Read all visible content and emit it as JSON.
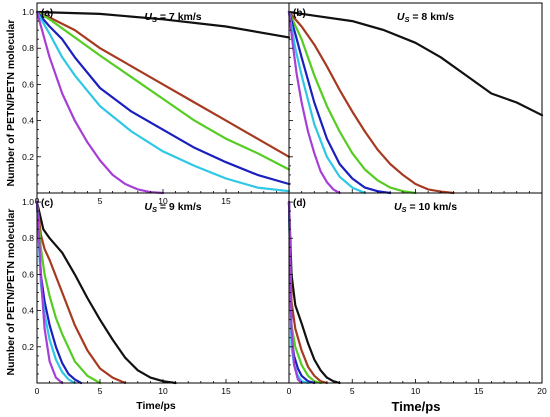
{
  "figure": {
    "ylabel_top": "Number of PETN/PETN molecular",
    "ylabel_bottom": "Number of PETN/PETN molecular",
    "xlabel_left": "Time/ps",
    "xlabel_right": "Time/ps"
  },
  "colors": {
    "black": "#111111",
    "brown": "#a63a20",
    "green": "#55cc22",
    "blue": "#1a1fbf",
    "cyan": "#2ec7e6",
    "purple": "#a63fd6"
  },
  "chart_data": [
    {
      "type": "line",
      "panel": "(a)",
      "title_prefix": "U",
      "title_sub": "S",
      "title_suffix": " = 7 km/s",
      "xlim": [
        0,
        20
      ],
      "ylim": [
        0,
        1.05
      ],
      "x_ticks": [
        "0",
        "5",
        "10",
        "15"
      ],
      "y_ticks": [
        "0.2",
        "0.4",
        "0.6",
        "0.8",
        "1.0"
      ],
      "series": [
        {
          "color": "black",
          "x": [
            0,
            5,
            10,
            15,
            20
          ],
          "y": [
            1.0,
            0.99,
            0.96,
            0.92,
            0.86
          ]
        },
        {
          "color": "brown",
          "x": [
            0,
            1,
            3,
            5,
            7.5,
            10,
            12.5,
            15,
            17.5,
            20
          ],
          "y": [
            1.0,
            0.97,
            0.9,
            0.8,
            0.7,
            0.6,
            0.5,
            0.4,
            0.3,
            0.2
          ]
        },
        {
          "color": "green",
          "x": [
            0,
            1,
            3,
            5,
            7.5,
            10,
            12.5,
            15,
            17.5,
            20
          ],
          "y": [
            1.0,
            0.96,
            0.86,
            0.76,
            0.64,
            0.52,
            0.4,
            0.3,
            0.22,
            0.13
          ]
        },
        {
          "color": "blue",
          "x": [
            0,
            1,
            2,
            3,
            5,
            7.5,
            10,
            12.5,
            15,
            17.5,
            20
          ],
          "y": [
            1.0,
            0.92,
            0.85,
            0.75,
            0.58,
            0.45,
            0.35,
            0.25,
            0.17,
            0.1,
            0.05
          ]
        },
        {
          "color": "cyan",
          "x": [
            0,
            1,
            2,
            3,
            5,
            7.5,
            10,
            12.5,
            15,
            17.5,
            20
          ],
          "y": [
            1.0,
            0.88,
            0.75,
            0.65,
            0.48,
            0.34,
            0.23,
            0.15,
            0.08,
            0.03,
            0.01
          ]
        },
        {
          "color": "purple",
          "x": [
            0,
            1,
            2,
            3,
            4,
            5,
            6,
            7,
            8,
            9,
            10
          ],
          "y": [
            1.0,
            0.75,
            0.55,
            0.4,
            0.28,
            0.18,
            0.1,
            0.05,
            0.02,
            0.005,
            0.0
          ]
        }
      ]
    },
    {
      "type": "line",
      "panel": "(b)",
      "title_prefix": "U",
      "title_sub": "S",
      "title_suffix": " = 8 km/s",
      "xlim": [
        0,
        20
      ],
      "ylim": [
        0,
        1.05
      ],
      "series": [
        {
          "color": "black",
          "x": [
            0,
            2,
            5,
            7.5,
            10,
            12,
            14,
            16,
            18,
            20
          ],
          "y": [
            1.0,
            0.98,
            0.95,
            0.9,
            0.83,
            0.75,
            0.65,
            0.55,
            0.5,
            0.43
          ]
        },
        {
          "color": "brown",
          "x": [
            0,
            1,
            2,
            3,
            4,
            5,
            6,
            7,
            8,
            9,
            10,
            11,
            12,
            13
          ],
          "y": [
            1.0,
            0.92,
            0.82,
            0.7,
            0.57,
            0.45,
            0.34,
            0.24,
            0.16,
            0.1,
            0.05,
            0.02,
            0.008,
            0.0
          ]
        },
        {
          "color": "green",
          "x": [
            0,
            1,
            2,
            3,
            4,
            5,
            6,
            7,
            8,
            9,
            10
          ],
          "y": [
            1.0,
            0.85,
            0.65,
            0.48,
            0.34,
            0.22,
            0.13,
            0.07,
            0.03,
            0.01,
            0.0
          ]
        },
        {
          "color": "blue",
          "x": [
            0,
            0.5,
            1,
            2,
            3,
            4,
            5,
            6,
            7,
            8
          ],
          "y": [
            1.0,
            0.88,
            0.75,
            0.5,
            0.3,
            0.16,
            0.08,
            0.03,
            0.01,
            0.0
          ]
        },
        {
          "color": "cyan",
          "x": [
            0,
            0.5,
            1,
            2,
            3,
            4,
            5,
            6
          ],
          "y": [
            1.0,
            0.8,
            0.65,
            0.38,
            0.2,
            0.09,
            0.03,
            0.0
          ]
        },
        {
          "color": "purple",
          "x": [
            0,
            0.3,
            0.6,
            1,
            1.5,
            2,
            2.5,
            3,
            3.5,
            4
          ],
          "y": [
            1.0,
            0.82,
            0.66,
            0.5,
            0.34,
            0.22,
            0.12,
            0.06,
            0.02,
            0.0
          ]
        }
      ]
    },
    {
      "type": "line",
      "panel": "(c)",
      "title_prefix": "U",
      "title_sub": "S",
      "title_suffix": " = 9 km/s",
      "xlim": [
        0,
        20
      ],
      "ylim": [
        0,
        1.05
      ],
      "x_ticks": [
        "0",
        "5",
        "10",
        "15"
      ],
      "y_ticks": [
        "0.2",
        "0.4",
        "0.6",
        "0.8",
        "1.0"
      ],
      "series": [
        {
          "color": "black",
          "x": [
            0,
            0.5,
            1,
            2,
            3,
            4,
            5,
            6,
            7,
            8,
            9,
            10,
            11
          ],
          "y": [
            1.0,
            0.85,
            0.8,
            0.72,
            0.6,
            0.47,
            0.35,
            0.24,
            0.14,
            0.07,
            0.03,
            0.01,
            0.0
          ]
        },
        {
          "color": "brown",
          "x": [
            0,
            0.3,
            0.6,
            1,
            2,
            3,
            4,
            5,
            6,
            7
          ],
          "y": [
            1.0,
            0.82,
            0.74,
            0.68,
            0.5,
            0.32,
            0.18,
            0.08,
            0.03,
            0.0
          ]
        },
        {
          "color": "green",
          "x": [
            0,
            0.3,
            0.6,
            1,
            1.5,
            2,
            3,
            4,
            5
          ],
          "y": [
            1.0,
            0.75,
            0.6,
            0.48,
            0.36,
            0.27,
            0.12,
            0.04,
            0.0
          ]
        },
        {
          "color": "blue",
          "x": [
            0,
            0.3,
            0.6,
            1,
            1.5,
            2,
            2.5,
            3,
            3.5
          ],
          "y": [
            1.0,
            0.6,
            0.45,
            0.32,
            0.2,
            0.11,
            0.05,
            0.02,
            0.0
          ]
        },
        {
          "color": "cyan",
          "x": [
            0,
            0.3,
            0.6,
            1,
            1.5,
            2,
            2.5,
            3
          ],
          "y": [
            1.0,
            0.55,
            0.38,
            0.24,
            0.13,
            0.06,
            0.02,
            0.0
          ]
        },
        {
          "color": "purple",
          "x": [
            0,
            0.2,
            0.4,
            0.6,
            1,
            1.5,
            2
          ],
          "y": [
            1.0,
            0.75,
            0.5,
            0.3,
            0.12,
            0.03,
            0.0
          ]
        }
      ]
    },
    {
      "type": "line",
      "panel": "(d)",
      "title_prefix": "U",
      "title_sub": "S",
      "title_suffix": " = 10 km/s",
      "xlim": [
        0,
        20
      ],
      "ylim": [
        0,
        1.05
      ],
      "x_ticks": [
        "0",
        "5",
        "10",
        "15",
        "20"
      ],
      "series": [
        {
          "color": "black",
          "x": [
            0,
            0.2,
            0.5,
            1,
            1.5,
            2,
            2.5,
            3,
            3.5,
            4
          ],
          "y": [
            1.0,
            0.6,
            0.43,
            0.33,
            0.22,
            0.13,
            0.07,
            0.03,
            0.01,
            0.0
          ]
        },
        {
          "color": "brown",
          "x": [
            0,
            0.2,
            0.5,
            1,
            1.5,
            2,
            2.5,
            3
          ],
          "y": [
            1.0,
            0.45,
            0.3,
            0.18,
            0.09,
            0.04,
            0.01,
            0.0
          ]
        },
        {
          "color": "green",
          "x": [
            0,
            0.2,
            0.5,
            1,
            1.5,
            2,
            2.5
          ],
          "y": [
            1.0,
            0.32,
            0.2,
            0.1,
            0.04,
            0.01,
            0.0
          ]
        },
        {
          "color": "blue",
          "x": [
            0,
            0.2,
            0.4,
            0.7,
            1,
            1.5,
            2
          ],
          "y": [
            1.0,
            0.25,
            0.15,
            0.08,
            0.04,
            0.01,
            0.0
          ]
        },
        {
          "color": "cyan",
          "x": [
            0,
            0.2,
            0.4,
            0.7,
            1,
            1.5
          ],
          "y": [
            1.0,
            0.2,
            0.1,
            0.04,
            0.01,
            0.0
          ]
        },
        {
          "color": "purple",
          "x": [
            0,
            0.1,
            0.2,
            0.4,
            0.7,
            1
          ],
          "y": [
            1.0,
            0.7,
            0.3,
            0.1,
            0.02,
            0.0
          ]
        }
      ]
    }
  ]
}
